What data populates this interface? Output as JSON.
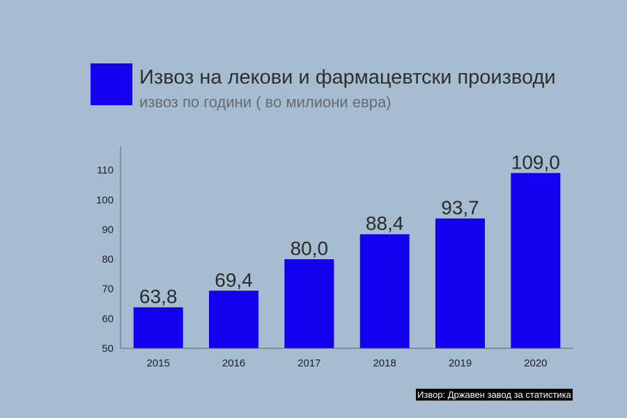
{
  "colors": {
    "background": "#a6bcd1",
    "bar": "#1300ee",
    "axis": "#666666"
  },
  "header": {
    "title": "Извоз на лекови и фармацевтски производи",
    "subtitle": "извоз по години ( во милиони евра)"
  },
  "source": "Извор: Државен завод за статистика",
  "chart_data": {
    "type": "bar",
    "title": "Извоз на лекови и фармацевтски производи",
    "subtitle": "извоз по години ( во милиони евра)",
    "categories": [
      "2015",
      "2016",
      "2017",
      "2018",
      "2019",
      "2020"
    ],
    "values": [
      63.8,
      69.4,
      80.0,
      88.4,
      93.7,
      109.0
    ],
    "value_labels": [
      "63,8",
      "69,4",
      "80,0",
      "88,4",
      "93,7",
      "109,0"
    ],
    "ylim": [
      50,
      118
    ],
    "yticks": [
      50,
      60,
      70,
      80,
      90,
      100,
      110
    ],
    "grid": false,
    "legend": "top-left"
  }
}
